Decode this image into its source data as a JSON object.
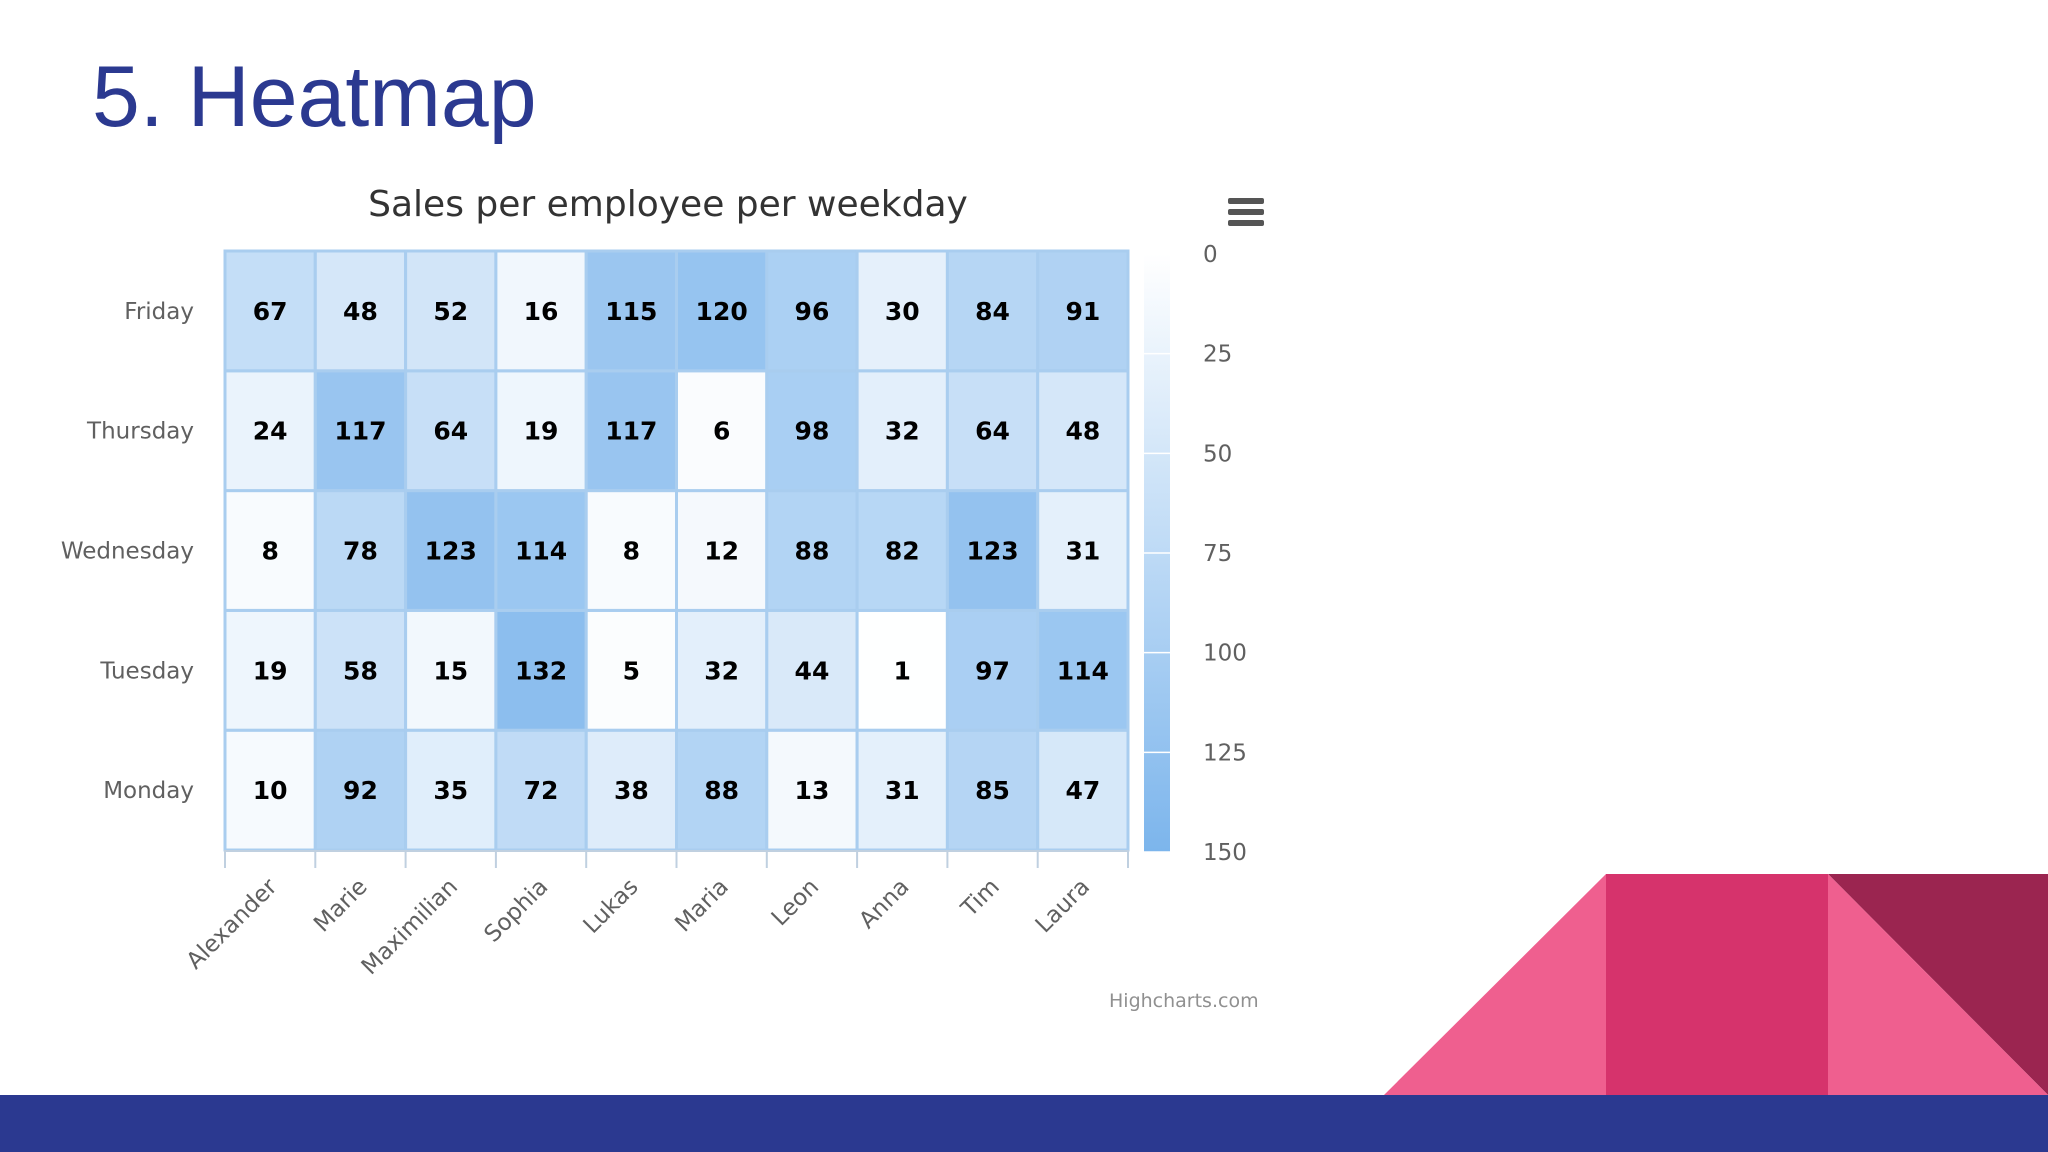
{
  "slide": {
    "title": "5. Heatmap"
  },
  "chart_data": {
    "type": "heatmap",
    "title": "Sales per employee per weekday",
    "x_categories": [
      "Alexander",
      "Marie",
      "Maximilian",
      "Sophia",
      "Lukas",
      "Maria",
      "Leon",
      "Anna",
      "Tim",
      "Laura"
    ],
    "y_categories": [
      "Monday",
      "Tuesday",
      "Wednesday",
      "Thursday",
      "Friday"
    ],
    "values": [
      [
        10,
        19,
        8,
        24,
        67
      ],
      [
        92,
        58,
        78,
        117,
        48
      ],
      [
        35,
        15,
        123,
        64,
        52
      ],
      [
        72,
        132,
        114,
        19,
        16
      ],
      [
        38,
        5,
        8,
        117,
        115
      ],
      [
        88,
        32,
        12,
        6,
        120
      ],
      [
        13,
        44,
        88,
        98,
        96
      ],
      [
        31,
        1,
        82,
        32,
        30
      ],
      [
        85,
        97,
        123,
        64,
        84
      ],
      [
        47,
        114,
        31,
        48,
        91
      ]
    ],
    "color_axis": {
      "min": 0,
      "max": 150,
      "ticks": [
        0,
        25,
        50,
        75,
        100,
        125,
        150
      ],
      "min_color": "#FFFFFF",
      "max_color": "#7CB5EC"
    },
    "legend_placement": "right",
    "credits": "Highcharts.com",
    "menu_icon": "hamburger-menu-icon"
  },
  "decoration": {
    "footer_color": "#2b3990",
    "triangle_colors": [
      "#ef5f8f",
      "#d6336c",
      "#9b2550"
    ]
  }
}
